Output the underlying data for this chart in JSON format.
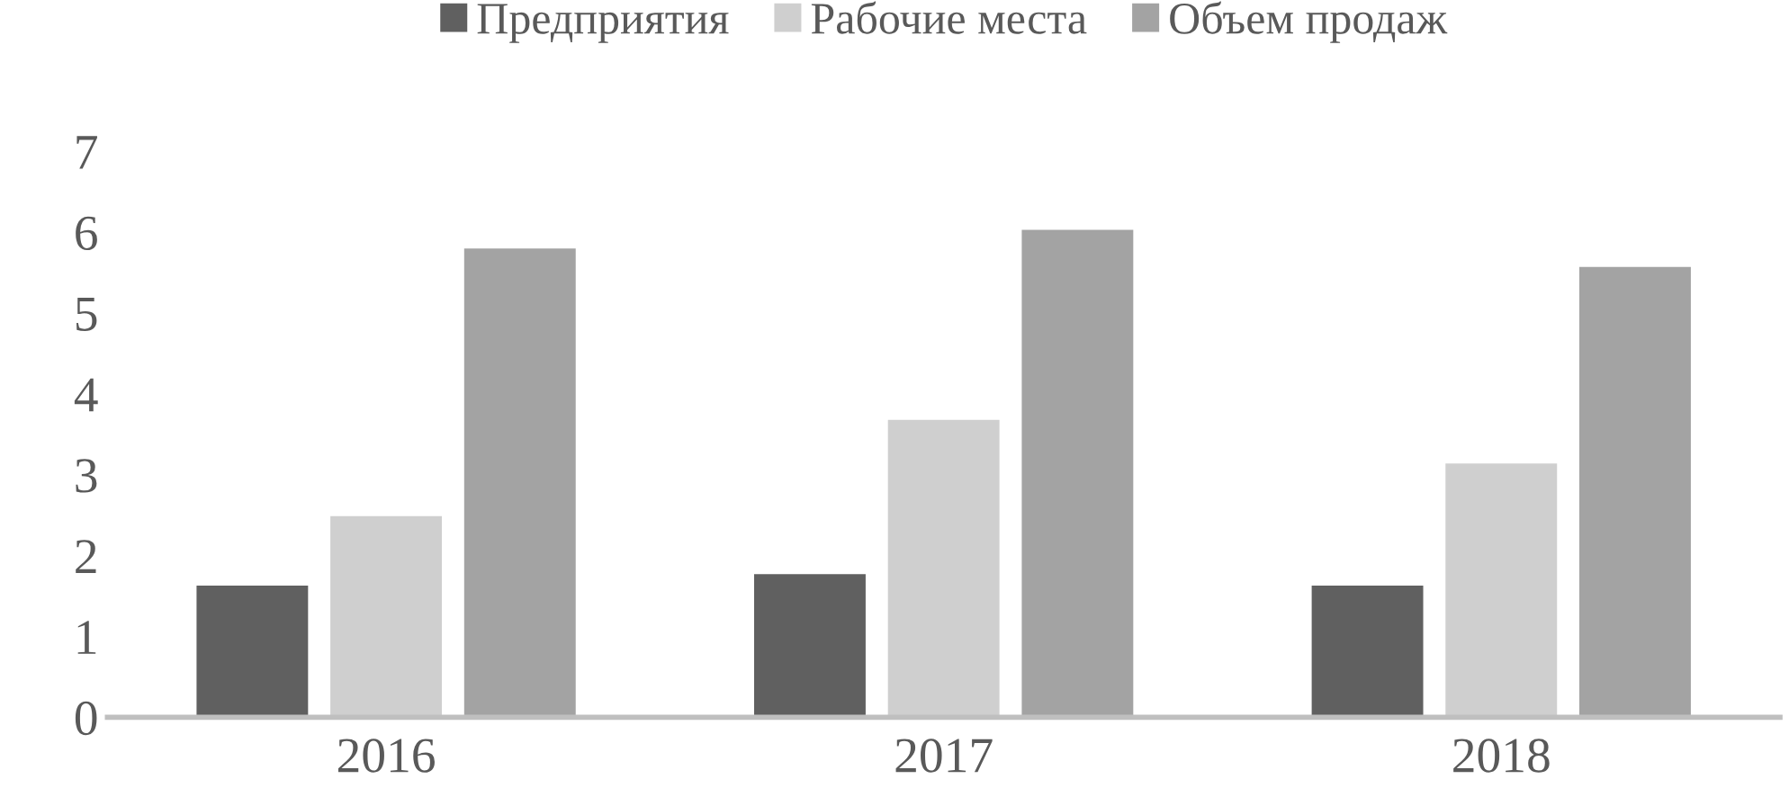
{
  "chart_data": {
    "type": "bar",
    "categories": [
      "2016",
      "2017",
      "2018"
    ],
    "series": [
      {
        "name": "Предприятия",
        "color": "#606060",
        "values": [
          1.63,
          1.77,
          1.63
        ]
      },
      {
        "name": "Рабочие места",
        "color": "#cfcfcf",
        "values": [
          2.49,
          3.68,
          3.14
        ]
      },
      {
        "name": "Объем продаж",
        "color": "#a3a3a3",
        "values": [
          5.8,
          6.03,
          5.57
        ]
      }
    ],
    "ylim": [
      0,
      7
    ],
    "yticks": [
      0,
      1,
      2,
      3,
      4,
      5,
      6,
      7
    ],
    "grid": false,
    "legend": "top"
  }
}
